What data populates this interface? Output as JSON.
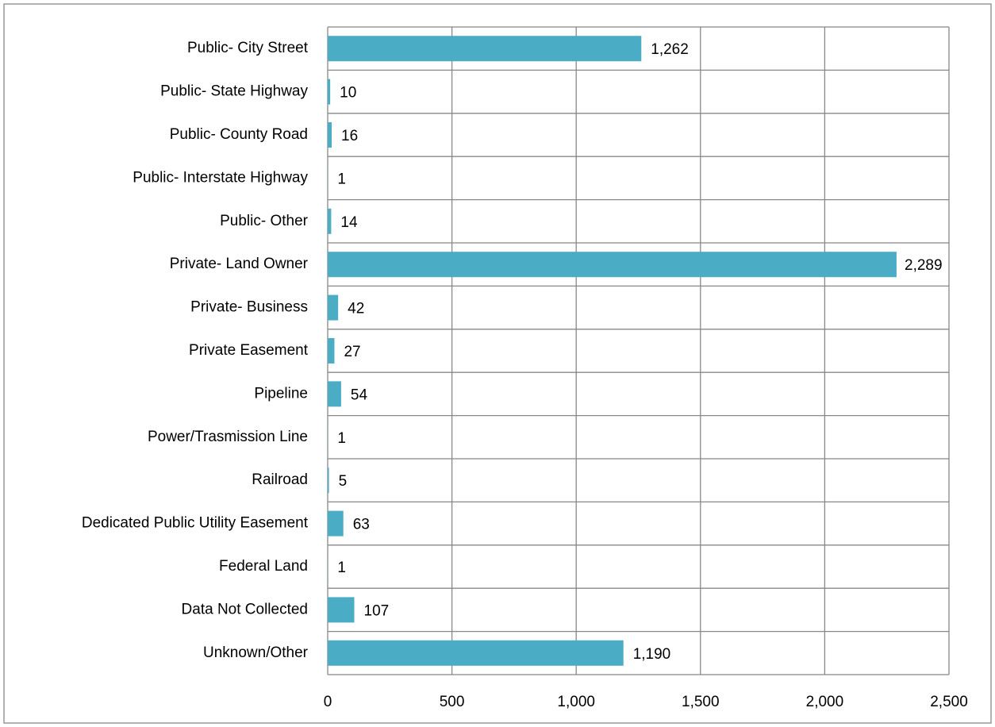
{
  "chart_data": {
    "type": "bar",
    "orientation": "horizontal",
    "categories": [
      "Public- City Street",
      "Public- State Highway",
      "Public- County Road",
      "Public- Interstate Highway",
      "Public- Other",
      "Private- Land Owner",
      "Private- Business",
      "Private Easement",
      "Pipeline",
      "Power/Trasmission Line",
      "Railroad",
      "Dedicated Public Utility Easement",
      "Federal Land",
      "Data Not Collected",
      "Unknown/Other"
    ],
    "values": [
      1262,
      10,
      16,
      1,
      14,
      2289,
      42,
      27,
      54,
      1,
      5,
      63,
      1,
      107,
      1190
    ],
    "value_labels": [
      "1,262",
      "10",
      "16",
      "1",
      "14",
      "2,289",
      "42",
      "27",
      "54",
      "1",
      "5",
      "63",
      "1",
      "107",
      "1,190"
    ],
    "color": "#4bacc6",
    "xlim": [
      0,
      2500
    ],
    "xticks": [
      0,
      500,
      {
        "value": 1000,
        "label": "1,000"
      },
      {
        "value": 1500,
        "label": "1,500"
      },
      {
        "value": 2000,
        "label": "2,000"
      },
      {
        "value": 2500,
        "label": "2,500"
      }
    ],
    "grid": true
  }
}
